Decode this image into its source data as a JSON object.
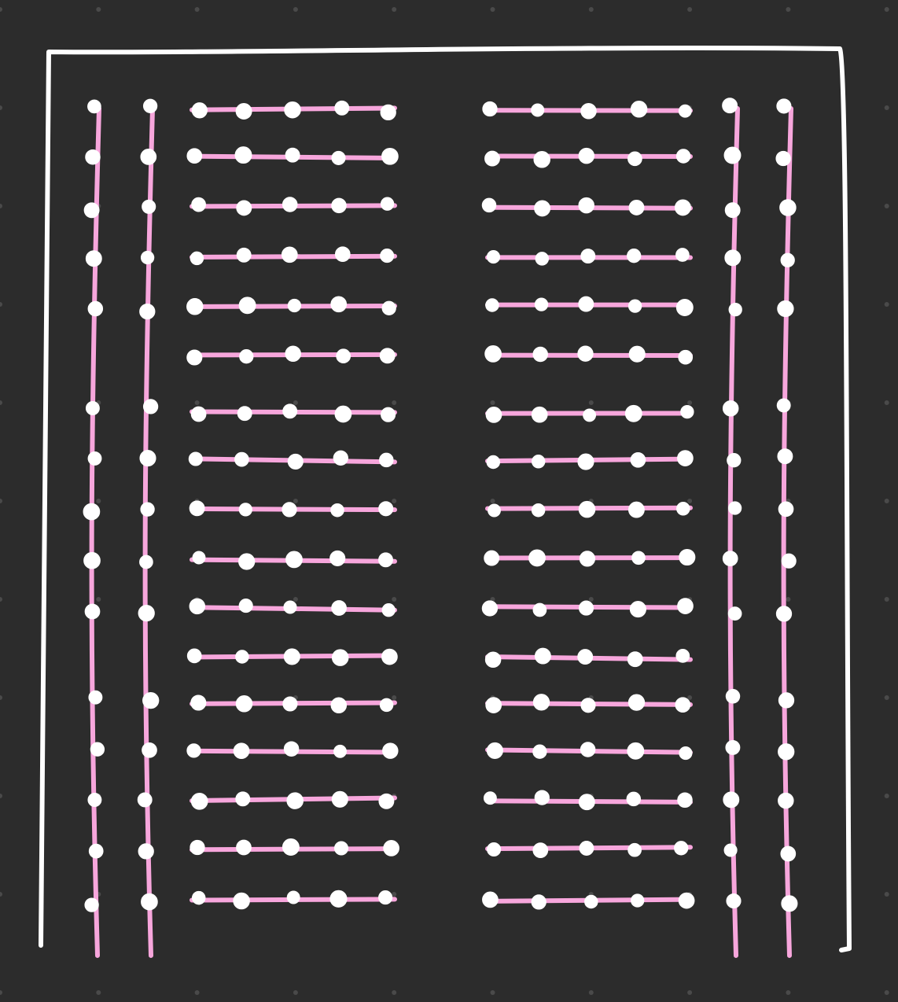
{
  "colors": {
    "background": "#2c2c2c",
    "grid_dot": "#4a4a4a",
    "frame": "#ffffff",
    "line": "#f7a6dc",
    "hole": "#ffffff"
  },
  "breadboard": {
    "power_rail_pairs": 2,
    "rail_segments_per_rail": 3,
    "holes_per_rail_segment": 5,
    "terminal_blocks": 2,
    "strips_per_block": 17,
    "holes_per_strip": 5
  }
}
